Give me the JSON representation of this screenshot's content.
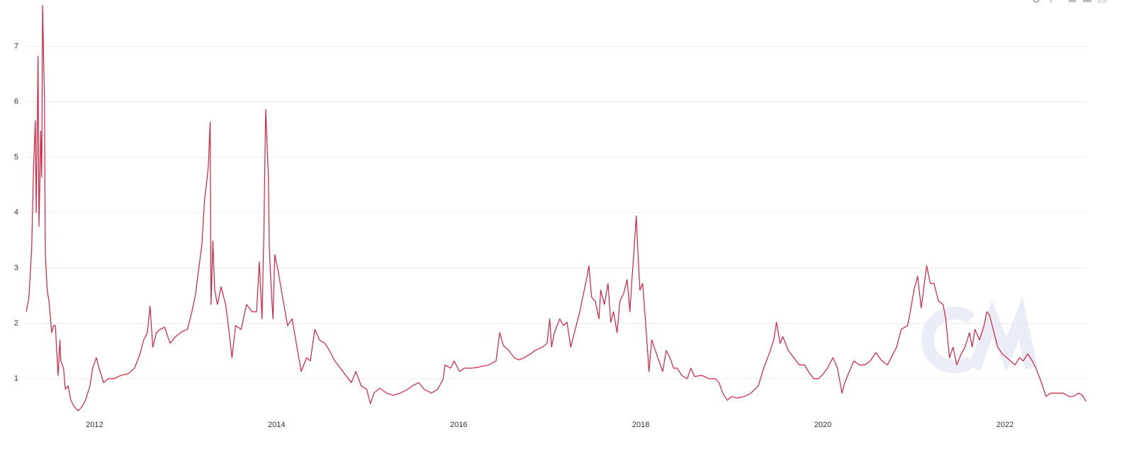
{
  "chart_data": {
    "type": "line",
    "color": "#d81e3c",
    "grid": true,
    "xlim": [
      2011.25,
      2022.9
    ],
    "xticks": [
      2012,
      2014,
      2016,
      2018,
      2020,
      2022
    ],
    "ylim": [
      0.35,
      7.8
    ],
    "yticks": [
      1,
      2,
      3,
      4,
      5,
      6,
      7
    ],
    "x": [
      2011.25,
      2011.28,
      2011.31,
      2011.33,
      2011.35,
      2011.36,
      2011.38,
      2011.39,
      2011.41,
      2011.42,
      2011.43,
      2011.45,
      2011.46,
      2011.48,
      2011.5,
      2011.53,
      2011.55,
      2011.57,
      2011.6,
      2011.62,
      2011.63,
      2011.66,
      2011.68,
      2011.71,
      2011.74,
      2011.78,
      2011.82,
      2011.86,
      2011.9,
      2011.95,
      2011.98,
      2012.02,
      2012.05,
      2012.1,
      2012.15,
      2012.21,
      2012.29,
      2012.37,
      2012.44,
      2012.5,
      2012.54,
      2012.58,
      2012.61,
      2012.64,
      2012.68,
      2012.72,
      2012.77,
      2012.83,
      2012.89,
      2012.96,
      2013.02,
      2013.07,
      2013.11,
      2013.14,
      2013.18,
      2013.21,
      2013.23,
      2013.25,
      2013.27,
      2013.28,
      2013.3,
      2013.32,
      2013.35,
      2013.39,
      2013.44,
      2013.47,
      2013.51,
      2013.55,
      2013.61,
      2013.67,
      2013.73,
      2013.78,
      2013.81,
      2013.84,
      2013.86,
      2013.88,
      2013.91,
      2013.92,
      2013.94,
      2013.96,
      2013.98,
      2014.02,
      2014.04,
      2014.08,
      2014.12,
      2014.17,
      2014.23,
      2014.27,
      2014.33,
      2014.37,
      2014.42,
      2014.47,
      2014.53,
      2014.58,
      2014.64,
      2014.7,
      2014.76,
      2014.82,
      2014.87,
      2014.93,
      2014.99,
      2015.03,
      2015.07,
      2015.13,
      2015.21,
      2015.28,
      2015.36,
      2015.44,
      2015.49,
      2015.56,
      2015.62,
      2015.7,
      2015.77,
      2015.83,
      2015.85,
      2015.91,
      2015.95,
      2016.01,
      2016.06,
      2016.14,
      2016.22,
      2016.33,
      2016.41,
      2016.45,
      2016.49,
      2016.55,
      2016.61,
      2016.66,
      2016.72,
      2016.79,
      2016.84,
      2016.92,
      2016.97,
      2017.0,
      2017.02,
      2017.05,
      2017.11,
      2017.15,
      2017.19,
      2017.23,
      2017.27,
      2017.33,
      2017.37,
      2017.41,
      2017.43,
      2017.46,
      2017.5,
      2017.54,
      2017.56,
      2017.6,
      2017.64,
      2017.67,
      2017.7,
      2017.74,
      2017.77,
      2017.81,
      2017.85,
      2017.88,
      2017.9,
      2017.93,
      2017.95,
      2017.97,
      2017.99,
      2018.02,
      2018.05,
      2018.09,
      2018.12,
      2018.16,
      2018.2,
      2018.24,
      2018.28,
      2018.32,
      2018.36,
      2018.4,
      2018.45,
      2018.51,
      2018.55,
      2018.59,
      2018.67,
      2018.75,
      2018.82,
      2018.86,
      2018.9,
      2018.95,
      2019.0,
      2019.06,
      2019.14,
      2019.21,
      2019.29,
      2019.35,
      2019.41,
      2019.46,
      2019.49,
      2019.53,
      2019.56,
      2019.62,
      2019.68,
      2019.74,
      2019.8,
      2019.84,
      2019.9,
      2019.95,
      2019.99,
      2020.05,
      2020.11,
      2020.16,
      2020.21,
      2020.24,
      2020.29,
      2020.34,
      2020.4,
      2020.46,
      2020.52,
      2020.58,
      2020.65,
      2020.71,
      2020.75,
      2020.81,
      2020.86,
      2020.93,
      2020.96,
      2021.0,
      2021.04,
      2021.08,
      2021.12,
      2021.14,
      2021.18,
      2021.22,
      2021.27,
      2021.32,
      2021.35,
      2021.39,
      2021.43,
      2021.47,
      2021.52,
      2021.56,
      2021.61,
      2021.64,
      2021.67,
      2021.72,
      2021.77,
      2021.8,
      2021.83,
      2021.88,
      2021.92,
      2021.97,
      2022.02,
      2022.06,
      2022.11,
      2022.16,
      2022.2,
      2022.25,
      2022.3,
      2022.34,
      2022.37,
      2022.4,
      2022.45,
      2022.5,
      2022.56,
      2022.64,
      2022.7,
      2022.75,
      2022.81,
      2022.85,
      2022.89
    ],
    "values": [
      2.21,
      2.47,
      3.36,
      4.77,
      5.66,
      4.0,
      6.82,
      3.75,
      5.47,
      4.64,
      7.74,
      6.05,
      3.24,
      2.6,
      2.4,
      1.83,
      1.96,
      1.96,
      1.06,
      1.7,
      1.32,
      1.19,
      0.81,
      0.87,
      0.61,
      0.49,
      0.42,
      0.49,
      0.61,
      0.87,
      1.19,
      1.38,
      1.19,
      0.93,
      1.0,
      1.0,
      1.06,
      1.09,
      1.19,
      1.45,
      1.7,
      1.83,
      2.31,
      1.57,
      1.83,
      1.89,
      1.93,
      1.64,
      1.76,
      1.85,
      1.89,
      2.21,
      2.53,
      2.92,
      3.43,
      4.26,
      4.51,
      4.83,
      5.63,
      2.34,
      3.49,
      2.6,
      2.34,
      2.66,
      2.34,
      1.96,
      1.38,
      1.96,
      1.89,
      2.34,
      2.21,
      2.21,
      3.11,
      2.08,
      3.62,
      5.86,
      4.64,
      3.36,
      2.66,
      2.08,
      3.24,
      2.92,
      2.72,
      2.34,
      1.96,
      2.08,
      1.51,
      1.13,
      1.38,
      1.32,
      1.89,
      1.7,
      1.64,
      1.51,
      1.32,
      1.19,
      1.06,
      0.93,
      1.13,
      0.87,
      0.81,
      0.55,
      0.74,
      0.83,
      0.74,
      0.7,
      0.74,
      0.81,
      0.87,
      0.93,
      0.81,
      0.74,
      0.81,
      1.0,
      1.25,
      1.19,
      1.32,
      1.13,
      1.19,
      1.19,
      1.21,
      1.25,
      1.32,
      1.83,
      1.6,
      1.51,
      1.38,
      1.34,
      1.38,
      1.45,
      1.51,
      1.57,
      1.64,
      2.08,
      1.57,
      1.83,
      2.08,
      1.96,
      2.02,
      1.57,
      1.83,
      2.21,
      2.53,
      2.85,
      3.04,
      2.47,
      2.4,
      2.08,
      2.6,
      2.34,
      2.72,
      2.02,
      2.21,
      1.83,
      2.4,
      2.53,
      2.79,
      2.21,
      2.72,
      3.43,
      3.94,
      3.24,
      2.6,
      2.72,
      2.08,
      1.13,
      1.7,
      1.51,
      1.32,
      1.13,
      1.51,
      1.38,
      1.19,
      1.19,
      1.06,
      1.0,
      1.19,
      1.04,
      1.06,
      1.0,
      1.0,
      0.93,
      0.74,
      0.61,
      0.68,
      0.65,
      0.68,
      0.74,
      0.87,
      1.19,
      1.45,
      1.7,
      2.02,
      1.64,
      1.76,
      1.51,
      1.38,
      1.25,
      1.25,
      1.13,
      1.0,
      1.0,
      1.06,
      1.19,
      1.38,
      1.19,
      0.74,
      0.93,
      1.13,
      1.32,
      1.25,
      1.25,
      1.32,
      1.47,
      1.32,
      1.25,
      1.38,
      1.57,
      1.89,
      1.96,
      2.21,
      2.6,
      2.85,
      2.28,
      2.79,
      3.04,
      2.72,
      2.72,
      2.4,
      2.34,
      2.08,
      1.38,
      1.57,
      1.25,
      1.45,
      1.57,
      1.83,
      1.57,
      1.89,
      1.7,
      1.96,
      2.21,
      2.15,
      1.83,
      1.57,
      1.45,
      1.38,
      1.32,
      1.25,
      1.38,
      1.32,
      1.45,
      1.32,
      1.19,
      1.06,
      0.93,
      0.68,
      0.74,
      0.74,
      0.74,
      0.68,
      0.68,
      0.74,
      0.7,
      0.59
    ]
  }
}
